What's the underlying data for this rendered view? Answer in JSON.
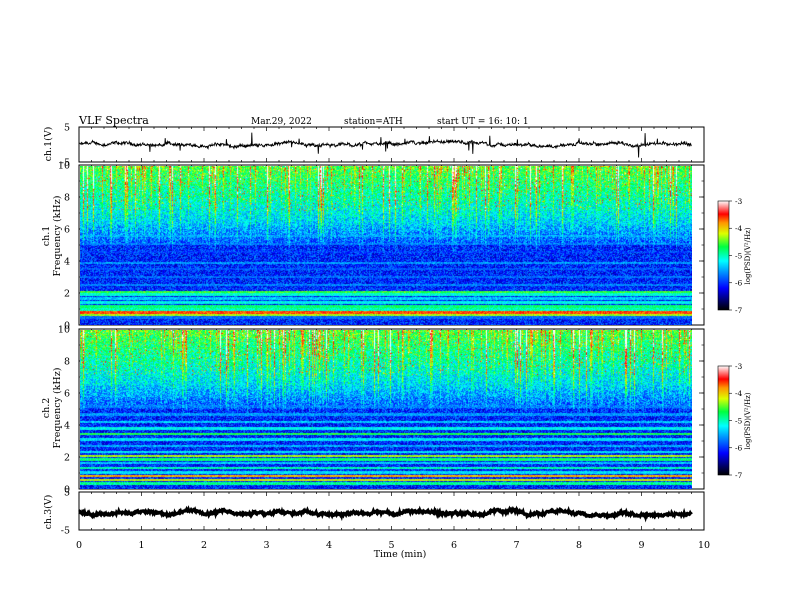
{
  "header": {
    "title": "VLF  Spectra",
    "date": "Mar.29, 2022",
    "station": "station=ATH",
    "start": "start  UT  =    16: 10: 1"
  },
  "chart_data": [
    {
      "type": "line",
      "name": "ch1-waveform",
      "ylabel": "ch.1(V)",
      "ylim": [
        -5,
        5
      ],
      "yticks": [
        "5",
        "-5"
      ],
      "xlim": [
        0,
        10
      ],
      "x_end": 9.8,
      "level": 0,
      "noise_amplitude": 0.7,
      "spike_amplitude": 2.2
    },
    {
      "type": "heatmap",
      "name": "ch1-spectrogram",
      "ylabel": "ch.1\nFrequency  (kHz)",
      "ylim": [
        0,
        10
      ],
      "yticks": [
        "0",
        "2",
        "4",
        "6",
        "8",
        "10"
      ],
      "xlim": [
        0,
        10
      ],
      "x_end": 9.8,
      "colorbar": {
        "label": "log(PSD)(V²/Hz)",
        "range": [
          -7,
          -3
        ],
        "ticks": [
          "-3",
          "-4",
          "-5",
          "-6",
          "-7"
        ]
      },
      "bands": [
        {
          "f": 0.25,
          "v": -6.7
        },
        {
          "f": 0.45,
          "v": -5.8
        },
        {
          "f": 0.6,
          "v": -4.3
        },
        {
          "f": 0.75,
          "v": -3.6
        },
        {
          "f": 0.95,
          "v": -5.0
        },
        {
          "f": 1.15,
          "v": -4.8
        },
        {
          "f": 1.4,
          "v": -5.2
        },
        {
          "f": 1.65,
          "v": -5.4
        },
        {
          "f": 1.9,
          "v": -5.1
        },
        {
          "f": 2.05,
          "v": -4.6
        },
        {
          "f": 2.25,
          "v": -6.2
        },
        {
          "f": 2.5,
          "v": -5.7
        },
        {
          "f": 3.0,
          "v": -5.8
        },
        {
          "f": 3.5,
          "v": -5.9
        },
        {
          "f": 3.9,
          "v": -5.6
        },
        {
          "f": 4.6,
          "v": -6.1
        },
        {
          "f": 5.1,
          "v": -5.8
        },
        {
          "f": 5.6,
          "v": -5.6
        },
        {
          "f": 6.4,
          "v": -5.8
        }
      ]
    },
    {
      "type": "heatmap",
      "name": "ch2-spectrogram",
      "ylabel": "ch.2\nFrequency  (kHz)",
      "ylim": [
        0,
        10
      ],
      "yticks": [
        "0",
        "2",
        "4",
        "6",
        "8",
        "10"
      ],
      "xlim": [
        0,
        10
      ],
      "x_end": 9.8,
      "colorbar": {
        "label": "log(PSD)(V²/Hz)",
        "range": [
          -7,
          -3
        ],
        "ticks": [
          "-3",
          "-4",
          "-5",
          "-6",
          "-7"
        ]
      },
      "bands": [
        {
          "f": 0.3,
          "v": -4.9
        },
        {
          "f": 0.55,
          "v": -4.2
        },
        {
          "f": 0.8,
          "v": -3.9
        },
        {
          "f": 1.0,
          "v": -5.3
        },
        {
          "f": 1.3,
          "v": -5.0
        },
        {
          "f": 1.6,
          "v": -5.4
        },
        {
          "f": 1.85,
          "v": -4.8
        },
        {
          "f": 2.05,
          "v": -4.3
        },
        {
          "f": 2.3,
          "v": -5.3
        },
        {
          "f": 2.7,
          "v": -5.5
        },
        {
          "f": 3.1,
          "v": -5.3
        },
        {
          "f": 3.45,
          "v": -4.7
        },
        {
          "f": 3.8,
          "v": -5.2
        },
        {
          "f": 4.2,
          "v": -5.4
        },
        {
          "f": 4.7,
          "v": -5.6
        },
        {
          "f": 5.2,
          "v": -5.8
        },
        {
          "f": 5.9,
          "v": -5.9
        },
        {
          "f": 6.6,
          "v": -5.7
        }
      ]
    },
    {
      "type": "line",
      "name": "ch3-waveform",
      "ylabel": "ch.3(V)",
      "ylim": [
        -5,
        5
      ],
      "yticks": [
        "5",
        "-5"
      ],
      "xlim": [
        0,
        10
      ],
      "x_end": 9.8,
      "level": -0.5,
      "noise_amplitude": 0.35,
      "spike_amplitude": 0
    }
  ],
  "xaxis": {
    "label": "Time  (min)",
    "ticks": [
      "0",
      "1",
      "2",
      "3",
      "4",
      "5",
      "6",
      "7",
      "8",
      "9",
      "10"
    ]
  }
}
